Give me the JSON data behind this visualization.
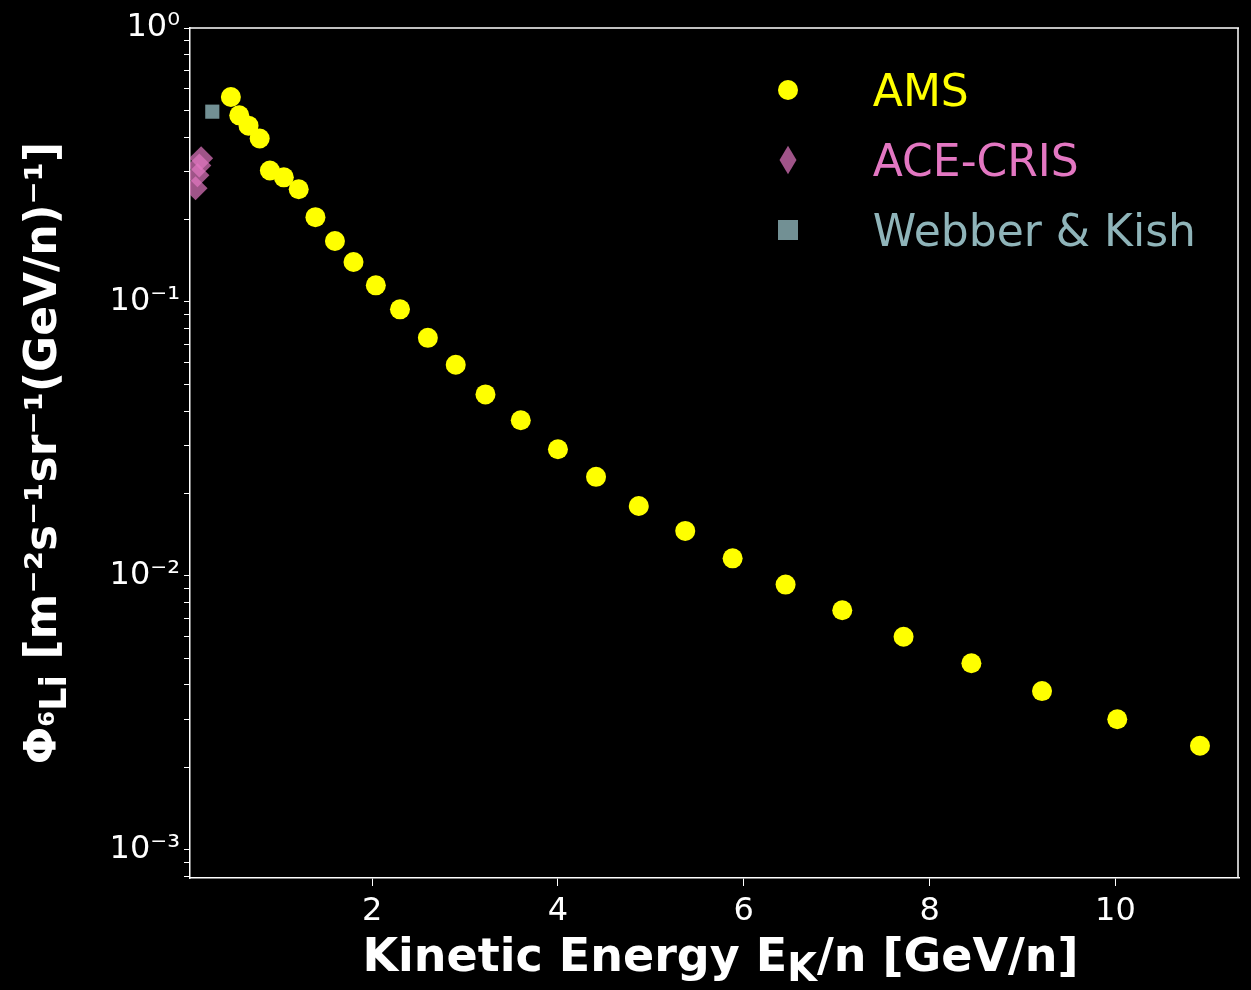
{
  "chart_data": {
    "type": "scatter",
    "xlabel": "Kinetic Energy E$_{K}$/n [GeV/n]",
    "ylabel": "Φ$_{⁶Li}$ [m⁻²s⁻¹sr⁻¹(GeV/n)⁻¹]",
    "log": "y",
    "grid": false,
    "legend": "top right",
    "xlim": [
      0.04,
      11.33
    ],
    "xticks": [
      2,
      4,
      6,
      8,
      10
    ],
    "ylim": [
      0.00079,
      1
    ],
    "yticks": [
      {
        "value": 1,
        "label": "10⁰"
      },
      {
        "value": 0.9,
        "label": null
      },
      {
        "value": 0.8,
        "label": null
      },
      {
        "value": 0.7,
        "label": null
      },
      {
        "value": 0.6,
        "label": null
      },
      {
        "value": 0.5,
        "label": null
      },
      {
        "value": 0.4,
        "label": null
      },
      {
        "value": 0.3,
        "label": null
      },
      {
        "value": 0.2,
        "label": null
      },
      {
        "value": 0.1,
        "label": "10⁻¹"
      },
      {
        "value": 0.09,
        "label": null
      },
      {
        "value": 0.08,
        "label": null
      },
      {
        "value": 0.07,
        "label": null
      },
      {
        "value": 0.06,
        "label": null
      },
      {
        "value": 0.05,
        "label": null
      },
      {
        "value": 0.04,
        "label": null
      },
      {
        "value": 0.03,
        "label": null
      },
      {
        "value": 0.02,
        "label": null
      },
      {
        "value": 0.01,
        "label": "10⁻²"
      },
      {
        "value": 0.009,
        "label": null
      },
      {
        "value": 0.008,
        "label": null
      },
      {
        "value": 0.007,
        "label": null
      },
      {
        "value": 0.006,
        "label": null
      },
      {
        "value": 0.005,
        "label": null
      },
      {
        "value": 0.004,
        "label": null
      },
      {
        "value": 0.003,
        "label": null
      },
      {
        "value": 0.002,
        "label": null
      },
      {
        "value": 0.001,
        "label": "10⁻³"
      },
      {
        "value": 0.0009,
        "label": null
      },
      {
        "value": 0.0008,
        "label": null
      }
    ],
    "series": [
      {
        "name": "AMS",
        "color": "#ffff00",
        "marker": "circle",
        "x": [
          0.48,
          0.57,
          0.67,
          0.79,
          0.9,
          1.05,
          1.21,
          1.39,
          1.6,
          1.8,
          2.04,
          2.3,
          2.6,
          2.9,
          3.22,
          3.6,
          4.0,
          4.41,
          4.87,
          5.37,
          5.88,
          6.45,
          7.06,
          7.72,
          8.45,
          9.21,
          10.02,
          10.91
        ],
        "values": [
          0.56,
          0.48,
          0.44,
          0.395,
          0.302,
          0.285,
          0.258,
          0.204,
          0.167,
          0.14,
          0.115,
          0.094,
          0.074,
          0.059,
          0.046,
          0.037,
          0.029,
          0.023,
          0.018,
          0.0146,
          0.0116,
          0.0093,
          0.0075,
          0.006,
          0.0048,
          0.0038,
          0.003,
          0.0024
        ]
      },
      {
        "name": "ACE-CRIS",
        "color": "#e377c2",
        "marker": "diamond",
        "x": [
          0.1,
          0.12,
          0.14,
          0.16
        ],
        "values": [
          0.26,
          0.29,
          0.315,
          0.335
        ]
      },
      {
        "name": "Webber & Kish",
        "color": "#8fb4b9",
        "marker": "square",
        "x": [
          0.28
        ],
        "values": [
          0.495
        ]
      }
    ]
  }
}
